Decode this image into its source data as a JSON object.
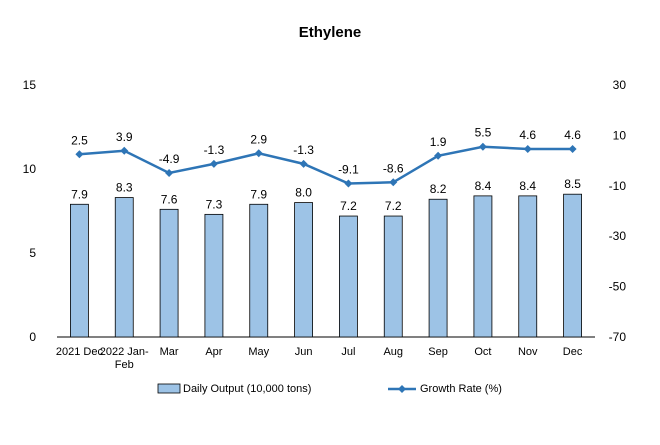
{
  "chart_data": {
    "type": "bar",
    "title": "Ethylene",
    "categories": [
      "2021 Dec",
      "2022 Jan-Feb",
      "Mar",
      "Apr",
      "May",
      "Jun",
      "Jul",
      "Aug",
      "Sep",
      "Oct",
      "Nov",
      "Dec"
    ],
    "series": [
      {
        "name": "Daily Output (10,000 tons)",
        "type": "bar",
        "axis": "left",
        "values": [
          7.9,
          8.3,
          7.6,
          7.3,
          7.9,
          8.0,
          7.2,
          7.2,
          8.2,
          8.4,
          8.4,
          8.5
        ],
        "labels": [
          "7.9",
          "8.3",
          "7.6",
          "7.3",
          "7.9",
          "8.0",
          "7.2",
          "7.2",
          "8.2",
          "8.4",
          "8.4",
          "8.5"
        ],
        "color": "#9DC3E6",
        "border": "#000000"
      },
      {
        "name": "Growth Rate (%)",
        "type": "line",
        "axis": "right",
        "values": [
          2.5,
          3.9,
          -4.9,
          -1.3,
          2.9,
          -1.3,
          -9.1,
          -8.6,
          1.9,
          5.5,
          4.6,
          4.6
        ],
        "labels": [
          "2.5",
          "3.9",
          "-4.9",
          "-1.3",
          "2.9",
          "-1.3",
          "-9.1",
          "-8.6",
          "1.9",
          "5.5",
          "4.6",
          "4.6"
        ],
        "color": "#2E75B6"
      }
    ],
    "y_left": {
      "min": 0,
      "max": 15,
      "ticks": [
        0,
        5,
        10,
        15
      ]
    },
    "y_right": {
      "min": -70,
      "max": 30,
      "ticks": [
        -70,
        -50,
        -30,
        -10,
        10,
        30
      ]
    },
    "legend_position": "bottom",
    "grid": false
  }
}
